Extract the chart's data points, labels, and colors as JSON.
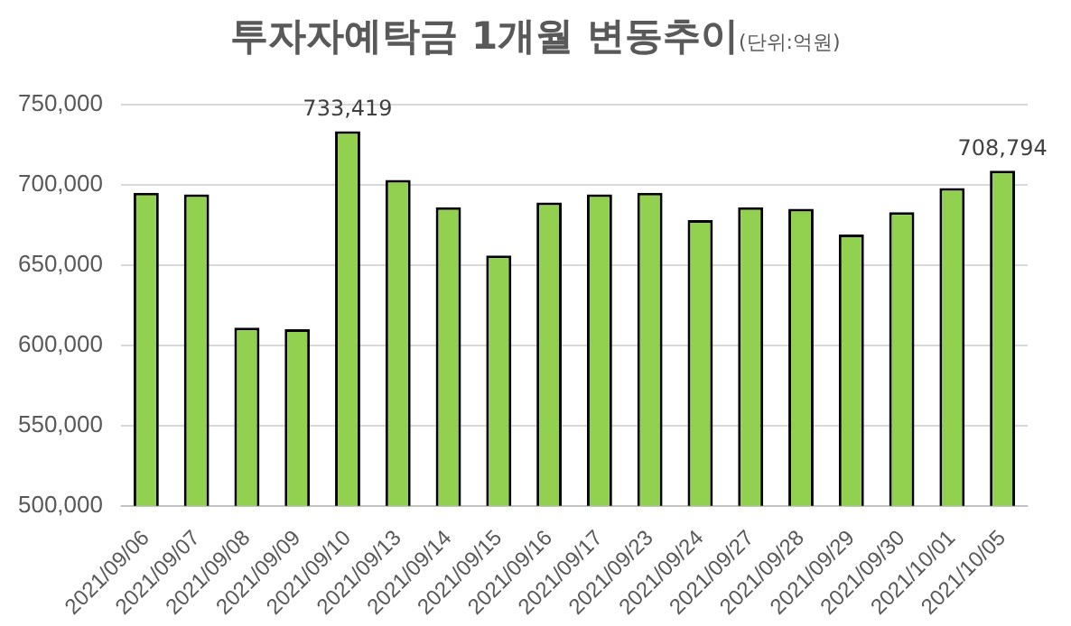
{
  "chart_data": {
    "type": "bar",
    "title": "투자자예탁금 1개월 변동추이",
    "subtitle": "(단위:억원)",
    "categories": [
      "2021/09/06",
      "2021/09/07",
      "2021/09/08",
      "2021/09/09",
      "2021/09/10",
      "2021/09/13",
      "2021/09/14",
      "2021/09/15",
      "2021/09/16",
      "2021/09/17",
      "2021/09/23",
      "2021/09/24",
      "2021/09/27",
      "2021/09/28",
      "2021/09/29",
      "2021/09/30",
      "2021/10/01",
      "2021/10/05"
    ],
    "values": [
      695000,
      694000,
      611000,
      610000,
      733419,
      703000,
      686000,
      656000,
      689000,
      694000,
      695000,
      678000,
      686000,
      685000,
      669000,
      683000,
      698000,
      708794
    ],
    "value_labels": [
      null,
      null,
      null,
      null,
      "733,419",
      null,
      null,
      null,
      null,
      null,
      null,
      null,
      null,
      null,
      null,
      null,
      null,
      "708,794"
    ],
    "color": "#92d050",
    "ylim": [
      500000,
      750000
    ],
    "yticks": [
      {
        "value": 500000,
        "label": "500,000"
      },
      {
        "value": 550000,
        "label": "550,000"
      },
      {
        "value": 600000,
        "label": "600,000"
      },
      {
        "value": 650000,
        "label": "650,000"
      },
      {
        "value": 700000,
        "label": "700,000"
      },
      {
        "value": 750000,
        "label": "750,000"
      }
    ],
    "grid": "y",
    "legend": false
  }
}
